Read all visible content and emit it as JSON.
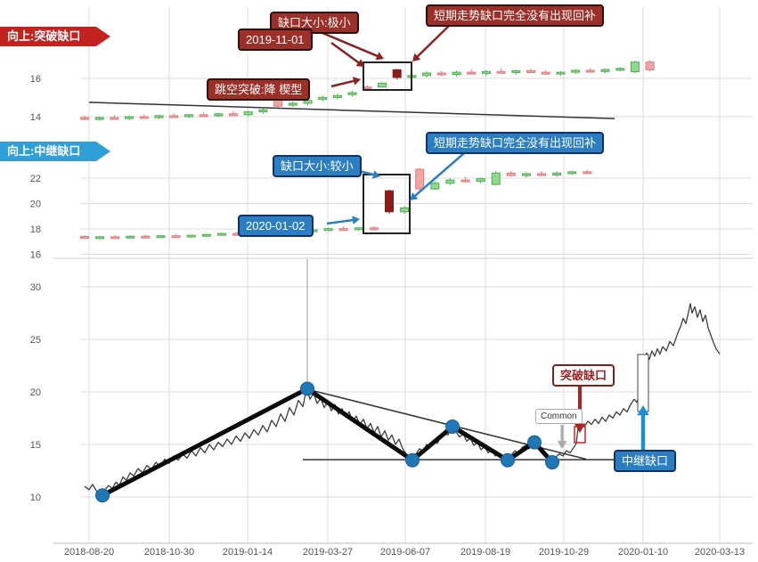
{
  "ribbons": {
    "top": "向上:突破缺口",
    "middle": "向上:中继缺口"
  },
  "badges": {
    "top": {
      "gap_size": "缺口大小:极小",
      "date": "2019-11-01",
      "no_fill": "短期走势缺口完全没有出现回补",
      "pattern": "跳空突破:降  楔型"
    },
    "middle": {
      "gap_size": "缺口大小:较小",
      "date": "2020-01-02",
      "no_fill": "短期走势缺口完全没有出现回补"
    },
    "bottom": {
      "breakaway": "突破缺口",
      "continuation": "中继缺口",
      "common": "Common"
    }
  },
  "colors": {
    "up": "#8fd98f",
    "up_stroke": "#4caf50",
    "down": "#f2a5a5",
    "down_stroke": "#e07a7a",
    "dark_down": "#8b1a1a",
    "red_accent": "#8b2222",
    "blue_accent": "#2b7fc1",
    "bright_blue": "#1f8fd0",
    "ribbon_red": "#c4221f",
    "ribbon_blue": "#2e9fd8",
    "grid": "#dddddd",
    "axis_text": "#555555",
    "price_line": "#3c3c44",
    "zigzag": "#0a0a0a",
    "pivot_dot": "#1f77b4"
  },
  "chart_data": [
    {
      "type": "candlestick",
      "panel": "top",
      "title": "向上:突破缺口",
      "ylim": [
        13.4,
        17.3
      ],
      "y_ticks": [
        16,
        14
      ],
      "grid": true,
      "trendline": [
        [
          100,
          14.75
        ],
        [
          690,
          13.9
        ]
      ],
      "candles": [
        [
          13.95,
          14.05,
          13.8,
          13.88,
          "d"
        ],
        [
          13.88,
          14.0,
          13.8,
          13.95,
          "u"
        ],
        [
          13.95,
          14.08,
          13.85,
          13.9,
          "d"
        ],
        [
          13.9,
          14.05,
          13.82,
          14.0,
          "u"
        ],
        [
          14.0,
          14.12,
          13.9,
          13.95,
          "d"
        ],
        [
          13.95,
          14.1,
          13.88,
          14.05,
          "u"
        ],
        [
          14.05,
          14.18,
          13.95,
          14.0,
          "d"
        ],
        [
          14.0,
          14.15,
          13.92,
          14.1,
          "u"
        ],
        [
          14.1,
          14.22,
          14.0,
          14.05,
          "d"
        ],
        [
          14.05,
          14.2,
          13.98,
          14.15,
          "u"
        ],
        [
          14.15,
          14.28,
          14.05,
          14.1,
          "d"
        ],
        [
          14.1,
          14.3,
          14.02,
          14.25,
          "u"
        ],
        [
          14.25,
          14.42,
          14.15,
          14.35,
          "u"
        ],
        [
          15.15,
          15.25,
          14.45,
          14.55,
          "d"
        ],
        [
          14.6,
          14.8,
          14.5,
          14.7,
          "u"
        ],
        [
          14.7,
          14.95,
          14.6,
          14.85,
          "u"
        ],
        [
          14.9,
          15.1,
          14.8,
          15.0,
          "u"
        ],
        [
          15.0,
          15.2,
          14.9,
          15.1,
          "u"
        ],
        [
          15.15,
          15.35,
          15.05,
          15.25,
          "u"
        ],
        [
          15.5,
          15.65,
          15.4,
          15.55,
          "d"
        ],
        [
          15.55,
          15.8,
          15.5,
          15.75,
          "u"
        ],
        [
          16.45,
          16.5,
          15.95,
          16.05,
          "k"
        ],
        [
          16.05,
          16.25,
          15.95,
          16.15,
          "u"
        ],
        [
          16.15,
          16.35,
          16.05,
          16.28,
          "u"
        ],
        [
          16.28,
          16.4,
          16.1,
          16.2,
          "d"
        ],
        [
          16.2,
          16.4,
          16.1,
          16.32,
          "u"
        ],
        [
          16.32,
          16.48,
          16.2,
          16.26,
          "d"
        ],
        [
          16.26,
          16.42,
          16.15,
          16.36,
          "u"
        ],
        [
          16.36,
          16.52,
          16.25,
          16.3,
          "d"
        ],
        [
          16.3,
          16.46,
          16.2,
          16.4,
          "u"
        ],
        [
          16.4,
          16.52,
          16.28,
          16.32,
          "d"
        ],
        [
          16.32,
          16.44,
          16.18,
          16.24,
          "d"
        ],
        [
          16.24,
          16.38,
          16.12,
          16.32,
          "u"
        ],
        [
          16.32,
          16.48,
          16.22,
          16.42,
          "u"
        ],
        [
          16.42,
          16.55,
          16.3,
          16.36,
          "d"
        ],
        [
          16.36,
          16.52,
          16.26,
          16.46,
          "u"
        ],
        [
          16.46,
          16.6,
          16.36,
          16.52,
          "u"
        ],
        [
          16.35,
          16.92,
          16.28,
          16.85,
          "u"
        ],
        [
          16.85,
          16.95,
          16.35,
          16.45,
          "d"
        ]
      ]
    },
    {
      "type": "candlestick",
      "panel": "middle",
      "title": "向上:中继缺口",
      "ylim": [
        16.0,
        24.0
      ],
      "y_ticks": [
        22,
        20,
        18,
        16
      ],
      "grid": true,
      "candles": [
        [
          17.4,
          17.5,
          17.25,
          17.3,
          "d"
        ],
        [
          17.3,
          17.45,
          17.2,
          17.38,
          "u"
        ],
        [
          17.38,
          17.5,
          17.28,
          17.32,
          "d"
        ],
        [
          17.32,
          17.48,
          17.24,
          17.42,
          "u"
        ],
        [
          17.42,
          17.55,
          17.3,
          17.36,
          "d"
        ],
        [
          17.36,
          17.52,
          17.28,
          17.46,
          "u"
        ],
        [
          17.46,
          17.58,
          17.34,
          17.4,
          "d"
        ],
        [
          17.4,
          17.55,
          17.32,
          17.5,
          "u"
        ],
        [
          17.5,
          17.62,
          17.4,
          17.56,
          "u"
        ],
        [
          17.56,
          17.7,
          17.46,
          17.64,
          "u"
        ],
        [
          17.64,
          17.78,
          17.54,
          17.58,
          "d"
        ],
        [
          17.58,
          17.74,
          17.5,
          17.68,
          "u"
        ],
        [
          17.68,
          17.84,
          17.58,
          17.76,
          "u"
        ],
        [
          17.76,
          17.92,
          17.66,
          17.7,
          "d"
        ],
        [
          17.7,
          17.88,
          17.6,
          17.8,
          "u"
        ],
        [
          17.8,
          18.0,
          17.7,
          17.92,
          "u"
        ],
        [
          17.92,
          18.1,
          17.82,
          18.02,
          "u"
        ],
        [
          18.02,
          18.2,
          17.9,
          17.96,
          "d"
        ],
        [
          17.96,
          18.16,
          17.86,
          18.08,
          "u"
        ],
        [
          18.08,
          18.2,
          17.85,
          17.95,
          "d"
        ],
        [
          21.0,
          21.1,
          19.2,
          19.35,
          "k"
        ],
        [
          19.35,
          19.8,
          19.2,
          19.65,
          "u"
        ],
        [
          22.7,
          22.8,
          21.0,
          21.15,
          "d"
        ],
        [
          21.15,
          21.75,
          21.05,
          21.6,
          "u"
        ],
        [
          21.6,
          22.0,
          21.45,
          21.85,
          "u"
        ],
        [
          21.85,
          22.1,
          21.65,
          21.75,
          "d"
        ],
        [
          21.75,
          22.05,
          21.6,
          21.95,
          "u"
        ],
        [
          21.5,
          22.55,
          21.4,
          22.4,
          "u"
        ],
        [
          22.4,
          22.55,
          22.1,
          22.2,
          "d"
        ],
        [
          22.2,
          22.45,
          22.05,
          22.35,
          "u"
        ],
        [
          22.35,
          22.55,
          22.15,
          22.25,
          "d"
        ],
        [
          22.25,
          22.5,
          22.1,
          22.4,
          "u"
        ],
        [
          22.4,
          22.6,
          22.25,
          22.5,
          "u"
        ],
        [
          22.5,
          22.65,
          22.3,
          22.38,
          "d"
        ]
      ]
    },
    {
      "type": "line",
      "panel": "bottom",
      "ylim": [
        8,
        31
      ],
      "y_ticks": [
        30,
        25,
        20,
        15,
        10
      ],
      "x_ticks": [
        "2018-08-20",
        "2018-10-30",
        "2019-01-14",
        "2019-03-27",
        "2019-06-07",
        "2019-08-19",
        "2019-10-29",
        "2020-01-10",
        "2020-03-13"
      ],
      "grid": true,
      "price": [
        [
          95,
          11.0
        ],
        [
          100,
          10.7
        ],
        [
          104,
          11.2
        ],
        [
          108,
          10.6
        ],
        [
          112,
          10.4
        ],
        [
          115,
          10.15
        ],
        [
          118,
          10.7
        ],
        [
          122,
          11.1
        ],
        [
          126,
          10.8
        ],
        [
          130,
          11.4
        ],
        [
          134,
          11.1
        ],
        [
          138,
          11.9
        ],
        [
          142,
          11.6
        ],
        [
          146,
          12.3
        ],
        [
          150,
          12.0
        ],
        [
          155,
          12.7
        ],
        [
          160,
          12.3
        ],
        [
          165,
          13.0
        ],
        [
          170,
          12.6
        ],
        [
          175,
          13.3
        ],
        [
          180,
          12.9
        ],
        [
          185,
          13.6
        ],
        [
          190,
          13.2
        ],
        [
          195,
          13.9
        ],
        [
          200,
          13.5
        ],
        [
          205,
          14.1
        ],
        [
          210,
          13.7
        ],
        [
          215,
          14.4
        ],
        [
          220,
          13.9
        ],
        [
          225,
          14.7
        ],
        [
          230,
          14.2
        ],
        [
          235,
          15.0
        ],
        [
          240,
          14.5
        ],
        [
          245,
          15.2
        ],
        [
          250,
          14.8
        ],
        [
          255,
          15.5
        ],
        [
          260,
          15.0
        ],
        [
          265,
          15.8
        ],
        [
          270,
          15.3
        ],
        [
          275,
          16.1
        ],
        [
          280,
          15.6
        ],
        [
          285,
          16.4
        ],
        [
          290,
          15.9
        ],
        [
          295,
          16.8
        ],
        [
          300,
          16.2
        ],
        [
          305,
          17.3
        ],
        [
          310,
          16.7
        ],
        [
          315,
          17.9
        ],
        [
          320,
          17.2
        ],
        [
          325,
          18.5
        ],
        [
          330,
          17.8
        ],
        [
          335,
          19.2
        ],
        [
          340,
          18.6
        ],
        [
          343,
          19.8
        ],
        [
          345,
          20.3
        ],
        [
          348,
          19.3
        ],
        [
          352,
          19.9
        ],
        [
          356,
          18.9
        ],
        [
          360,
          19.4
        ],
        [
          364,
          18.5
        ],
        [
          368,
          19.1
        ],
        [
          372,
          18.2
        ],
        [
          376,
          18.8
        ],
        [
          380,
          17.9
        ],
        [
          384,
          18.4
        ],
        [
          388,
          17.6
        ],
        [
          392,
          18.1
        ],
        [
          396,
          17.2
        ],
        [
          400,
          17.7
        ],
        [
          404,
          16.9
        ],
        [
          408,
          17.4
        ],
        [
          412,
          16.5
        ],
        [
          416,
          17.0
        ],
        [
          420,
          16.1
        ],
        [
          424,
          16.7
        ],
        [
          428,
          15.7
        ],
        [
          432,
          16.3
        ],
        [
          436,
          15.4
        ],
        [
          440,
          15.9
        ],
        [
          444,
          15.0
        ],
        [
          448,
          15.5
        ],
        [
          452,
          14.6
        ],
        [
          456,
          14.1
        ],
        [
          460,
          13.8
        ],
        [
          463,
          13.5
        ],
        [
          467,
          14.1
        ],
        [
          471,
          14.6
        ],
        [
          475,
          14.3
        ],
        [
          479,
          15.0
        ],
        [
          483,
          14.7
        ],
        [
          487,
          15.4
        ],
        [
          491,
          15.1
        ],
        [
          495,
          15.8
        ],
        [
          499,
          16.1
        ],
        [
          503,
          15.9
        ],
        [
          508,
          16.7
        ],
        [
          512,
          16.2
        ],
        [
          516,
          15.7
        ],
        [
          520,
          16.0
        ],
        [
          524,
          15.3
        ],
        [
          528,
          15.6
        ],
        [
          532,
          14.9
        ],
        [
          536,
          15.2
        ],
        [
          540,
          14.5
        ],
        [
          544,
          14.8
        ],
        [
          548,
          14.2
        ],
        [
          552,
          14.5
        ],
        [
          556,
          13.9
        ],
        [
          560,
          14.2
        ],
        [
          564,
          13.8
        ],
        [
          568,
          13.6
        ],
        [
          570,
          13.5
        ],
        [
          574,
          14.0
        ],
        [
          578,
          14.4
        ],
        [
          582,
          14.1
        ],
        [
          586,
          14.7
        ],
        [
          590,
          14.9
        ],
        [
          594,
          14.6
        ],
        [
          598,
          15.1
        ],
        [
          600,
          15.2
        ],
        [
          604,
          14.7
        ],
        [
          608,
          14.2
        ],
        [
          612,
          13.9
        ],
        [
          616,
          13.5
        ],
        [
          620,
          13.3
        ],
        [
          624,
          13.8
        ],
        [
          628,
          14.1
        ],
        [
          632,
          13.9
        ],
        [
          636,
          14.4
        ],
        [
          640,
          14.2
        ],
        [
          644,
          14.7
        ],
        [
          647,
          15.1
        ],
        [
          649,
          16.6
        ],
        [
          652,
          17.0
        ],
        [
          656,
          16.7
        ],
        [
          660,
          17.2
        ],
        [
          664,
          16.9
        ],
        [
          668,
          17.4
        ],
        [
          672,
          17.0
        ],
        [
          676,
          17.6
        ],
        [
          680,
          17.2
        ],
        [
          684,
          17.8
        ],
        [
          688,
          17.5
        ],
        [
          692,
          18.1
        ],
        [
          696,
          17.8
        ],
        [
          700,
          18.4
        ],
        [
          704,
          18.1
        ],
        [
          708,
          18.8
        ],
        [
          712,
          19.3
        ],
        [
          715,
          19.0
        ],
        [
          718,
          19.8
        ],
        [
          721,
          20.3
        ],
        [
          723,
          23.2
        ],
        [
          726,
          23.7
        ],
        [
          729,
          23.1
        ],
        [
          732,
          23.9
        ],
        [
          735,
          23.4
        ],
        [
          738,
          24.1
        ],
        [
          741,
          23.6
        ],
        [
          744,
          24.3
        ],
        [
          748,
          23.9
        ],
        [
          752,
          24.8
        ],
        [
          756,
          24.4
        ],
        [
          760,
          25.4
        ],
        [
          764,
          26.2
        ],
        [
          767,
          27.0
        ],
        [
          770,
          26.5
        ],
        [
          773,
          27.6
        ],
        [
          775,
          28.4
        ],
        [
          777,
          27.5
        ],
        [
          780,
          28.1
        ],
        [
          783,
          27.1
        ],
        [
          786,
          27.8
        ],
        [
          789,
          26.7
        ],
        [
          792,
          27.3
        ],
        [
          795,
          26.1
        ],
        [
          798,
          25.4
        ],
        [
          801,
          24.7
        ],
        [
          804,
          24.1
        ],
        [
          808,
          23.6
        ]
      ],
      "zigzag": [
        [
          115,
          10.15
        ],
        [
          345,
          20.3
        ],
        [
          463,
          13.5
        ],
        [
          508,
          16.7
        ],
        [
          570,
          13.5
        ],
        [
          600,
          15.2
        ],
        [
          620,
          13.3
        ]
      ],
      "pivots": [
        [
          115,
          10.15
        ],
        [
          345,
          20.3
        ],
        [
          463,
          13.5
        ],
        [
          508,
          16.7
        ],
        [
          570,
          13.5
        ],
        [
          600,
          15.2
        ],
        [
          620,
          13.3
        ]
      ],
      "trendlines": {
        "descending": [
          [
            345,
            20.25
          ],
          [
            658,
            13.6
          ]
        ],
        "horizontal": [
          [
            340,
            13.55
          ],
          [
            705,
            13.55
          ]
        ]
      }
    }
  ]
}
